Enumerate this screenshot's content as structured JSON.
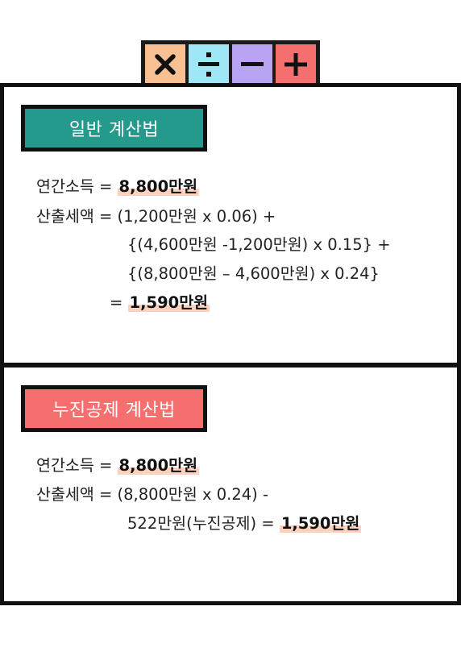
{
  "operators": {
    "items": [
      {
        "symbol": "multiply",
        "color": "#f9c193"
      },
      {
        "symbol": "divide",
        "color": "#9ee7f7"
      },
      {
        "symbol": "minus",
        "color": "#b8a4f2"
      },
      {
        "symbol": "plus",
        "color": "#f56f6f"
      }
    ]
  },
  "general": {
    "title": "일반 계산법",
    "title_color": "#239a8c",
    "income_label": "연간소득 = ",
    "income_value": "8,800만원",
    "tax_label": "산출세액 = ",
    "tax_line1": "(1,200만원 x 0.06) +",
    "tax_line2": "{(4,600만원 -1,200만원) x 0.15} +",
    "tax_line3": "{(8,800만원 – 4,600만원) x 0.24}",
    "result_prefix": "= ",
    "result_value": "1,590만원"
  },
  "progressive": {
    "title": "누진공제 계산법",
    "title_color": "#f56f6f",
    "income_label": "연간소득 = ",
    "income_value": "8,800만원",
    "tax_label": "산출세액 = ",
    "tax_line1": "(8,800만원 x 0.24) -",
    "tax_line2": "522만원(누진공제) = ",
    "result_value": "1,590만원"
  },
  "highlight_color": "#fbd2bd"
}
